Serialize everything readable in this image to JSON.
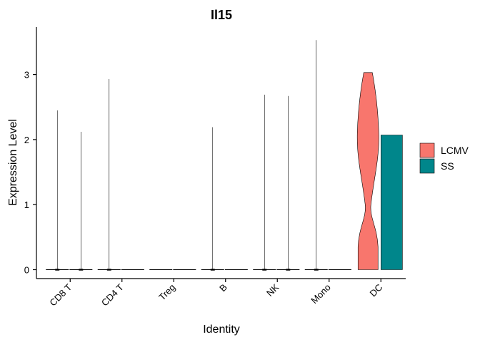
{
  "chart_data": {
    "type": "violin",
    "title": "Il15",
    "xlabel": "Identity",
    "ylabel": "Expression Level",
    "ylim": [
      0,
      3.5
    ],
    "yticks": [
      0,
      1,
      2,
      3
    ],
    "categories": [
      "CD8 T",
      "CD4 T",
      "Treg",
      "B",
      "NK",
      "Mono",
      "DC"
    ],
    "series": [
      {
        "name": "LCMV",
        "color": "#F8766D",
        "max_values": [
          2.45,
          2.93,
          0,
          2.19,
          2.69,
          3.53,
          3.03
        ]
      },
      {
        "name": "SS",
        "color": "#00868B",
        "max_values": [
          2.12,
          0,
          0,
          0,
          2.67,
          0,
          2.07
        ]
      }
    ],
    "legend_position": "right"
  }
}
